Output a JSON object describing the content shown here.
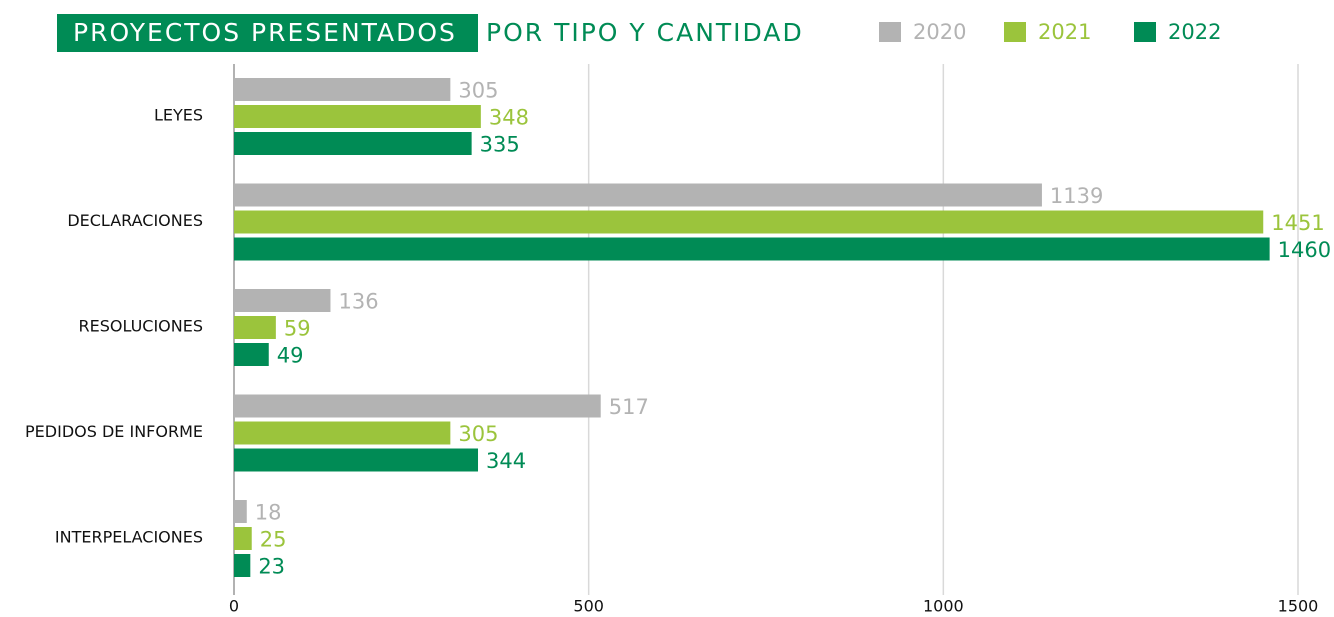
{
  "chart_data": {
    "type": "bar",
    "orientation": "horizontal",
    "title": "PROYECTOS PRESENTADOS",
    "subtitle": "POR TIPO Y CANTIDAD",
    "categories": [
      "LEYES",
      "DECLARACIONES",
      "RESOLUCIONES",
      "PEDIDOS DE INFORME",
      "INTERPELACIONES"
    ],
    "series": [
      {
        "name": "2020",
        "color": "#b3b3b3",
        "values": [
          305,
          1139,
          136,
          517,
          18
        ]
      },
      {
        "name": "2021",
        "color": "#9bc43c",
        "values": [
          348,
          1451,
          59,
          305,
          25
        ]
      },
      {
        "name": "2022",
        "color": "#008b55",
        "values": [
          335,
          1460,
          49,
          344,
          23
        ]
      }
    ],
    "xlim": [
      0,
      1500
    ],
    "xticks": [
      0,
      500,
      1000,
      1500
    ],
    "grid": true,
    "legend": "top-right"
  }
}
